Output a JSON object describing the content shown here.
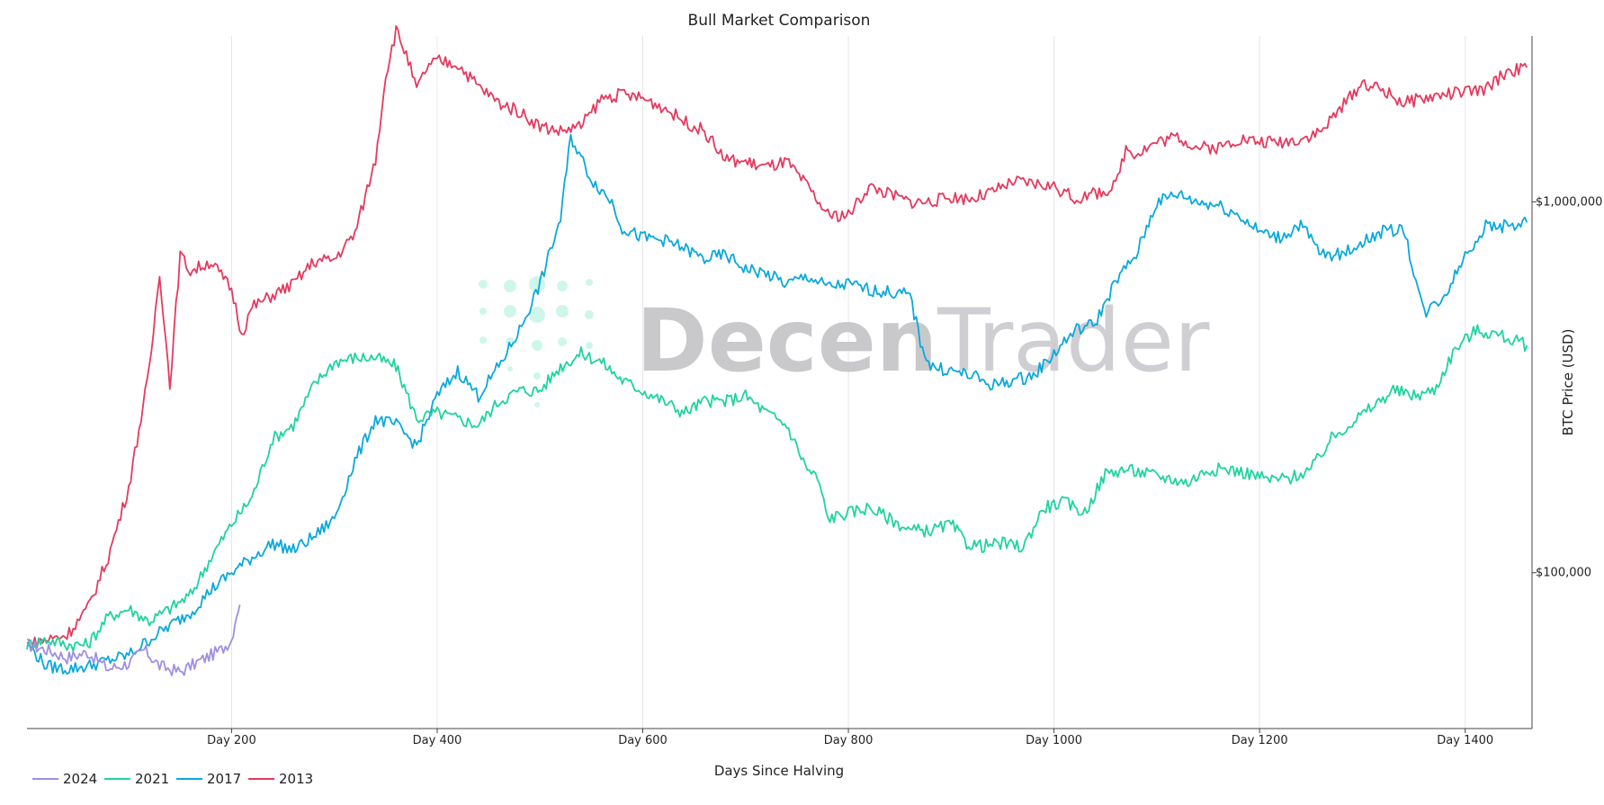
{
  "chart_data": {
    "type": "line",
    "title": "Bull Market Comparison",
    "xlabel": "Days Since Halving",
    "ylabel": "BTC Price (USD)",
    "y_scale": "log",
    "xlim": [
      1,
      1465
    ],
    "ylim": [
      38000,
      2800000
    ],
    "x_ticks": [
      {
        "value": 200,
        "label": "Day 200"
      },
      {
        "value": 400,
        "label": "Day 400"
      },
      {
        "value": 600,
        "label": "Day 600"
      },
      {
        "value": 800,
        "label": "Day 800"
      },
      {
        "value": 1000,
        "label": "Day 1000"
      },
      {
        "value": 1200,
        "label": "Day 1200"
      },
      {
        "value": 1400,
        "label": "Day 1400"
      }
    ],
    "y_ticks": [
      {
        "value": 100000,
        "label": "$100,000"
      },
      {
        "value": 1000000,
        "label": "$1,000,000"
      }
    ],
    "grid": "vertical",
    "legend_position": "bottom-left",
    "series": [
      {
        "name": "2024",
        "color": "#9f8fe3",
        "points": [
          [
            1,
            64000
          ],
          [
            20,
            62000
          ],
          [
            40,
            59000
          ],
          [
            60,
            61000
          ],
          [
            80,
            55000
          ],
          [
            100,
            57000
          ],
          [
            115,
            62000
          ],
          [
            130,
            56000
          ],
          [
            150,
            54000
          ],
          [
            170,
            58000
          ],
          [
            190,
            62000
          ],
          [
            200,
            66000
          ],
          [
            205,
            78000
          ],
          [
            208,
            82000
          ]
        ]
      },
      {
        "name": "2021",
        "color": "#1fd3a0",
        "points": [
          [
            1,
            64000
          ],
          [
            20,
            66000
          ],
          [
            40,
            64000
          ],
          [
            60,
            64000
          ],
          [
            80,
            76000
          ],
          [
            100,
            80000
          ],
          [
            120,
            74000
          ],
          [
            140,
            80000
          ],
          [
            160,
            87000
          ],
          [
            180,
            110000
          ],
          [
            200,
            135000
          ],
          [
            220,
            160000
          ],
          [
            240,
            230000
          ],
          [
            260,
            250000
          ],
          [
            280,
            320000
          ],
          [
            300,
            370000
          ],
          [
            320,
            380000
          ],
          [
            340,
            380000
          ],
          [
            360,
            360000
          ],
          [
            380,
            260000
          ],
          [
            400,
            270000
          ],
          [
            420,
            260000
          ],
          [
            440,
            250000
          ],
          [
            460,
            290000
          ],
          [
            480,
            310000
          ],
          [
            500,
            310000
          ],
          [
            520,
            360000
          ],
          [
            540,
            390000
          ],
          [
            560,
            370000
          ],
          [
            580,
            330000
          ],
          [
            600,
            310000
          ],
          [
            620,
            290000
          ],
          [
            640,
            270000
          ],
          [
            660,
            290000
          ],
          [
            680,
            290000
          ],
          [
            700,
            300000
          ],
          [
            720,
            270000
          ],
          [
            740,
            250000
          ],
          [
            760,
            190000
          ],
          [
            770,
            180000
          ],
          [
            780,
            140000
          ],
          [
            800,
            145000
          ],
          [
            820,
            150000
          ],
          [
            840,
            140000
          ],
          [
            860,
            130000
          ],
          [
            880,
            130000
          ],
          [
            900,
            135000
          ],
          [
            915,
            120000
          ],
          [
            930,
            118000
          ],
          [
            950,
            120000
          ],
          [
            970,
            117000
          ],
          [
            990,
            150000
          ],
          [
            1010,
            155000
          ],
          [
            1030,
            145000
          ],
          [
            1050,
            185000
          ],
          [
            1070,
            190000
          ],
          [
            1090,
            185000
          ],
          [
            1110,
            180000
          ],
          [
            1130,
            175000
          ],
          [
            1150,
            190000
          ],
          [
            1170,
            190000
          ],
          [
            1190,
            185000
          ],
          [
            1210,
            178000
          ],
          [
            1230,
            180000
          ],
          [
            1250,
            190000
          ],
          [
            1270,
            230000
          ],
          [
            1290,
            255000
          ],
          [
            1310,
            280000
          ],
          [
            1330,
            310000
          ],
          [
            1350,
            300000
          ],
          [
            1370,
            310000
          ],
          [
            1390,
            400000
          ],
          [
            1410,
            450000
          ],
          [
            1430,
            440000
          ],
          [
            1450,
            420000
          ],
          [
            1460,
            410000
          ]
        ]
      },
      {
        "name": "2017",
        "color": "#0aa8dc",
        "points": [
          [
            1,
            64000
          ],
          [
            20,
            56000
          ],
          [
            40,
            55000
          ],
          [
            60,
            56000
          ],
          [
            80,
            58000
          ],
          [
            100,
            60000
          ],
          [
            120,
            66000
          ],
          [
            140,
            72000
          ],
          [
            160,
            78000
          ],
          [
            180,
            90000
          ],
          [
            200,
            100000
          ],
          [
            220,
            110000
          ],
          [
            240,
            120000
          ],
          [
            260,
            115000
          ],
          [
            280,
            125000
          ],
          [
            300,
            140000
          ],
          [
            320,
            200000
          ],
          [
            340,
            260000
          ],
          [
            360,
            250000
          ],
          [
            380,
            220000
          ],
          [
            400,
            300000
          ],
          [
            420,
            350000
          ],
          [
            440,
            300000
          ],
          [
            460,
            360000
          ],
          [
            480,
            450000
          ],
          [
            500,
            600000
          ],
          [
            520,
            900000
          ],
          [
            530,
            1500000
          ],
          [
            550,
            1150000
          ],
          [
            570,
            1000000
          ],
          [
            580,
            850000
          ],
          [
            600,
            800000
          ],
          [
            620,
            790000
          ],
          [
            640,
            750000
          ],
          [
            660,
            700000
          ],
          [
            680,
            720000
          ],
          [
            700,
            660000
          ],
          [
            720,
            640000
          ],
          [
            740,
            600000
          ],
          [
            760,
            630000
          ],
          [
            780,
            590000
          ],
          [
            800,
            600000
          ],
          [
            820,
            580000
          ],
          [
            840,
            570000
          ],
          [
            860,
            560000
          ],
          [
            870,
            420000
          ],
          [
            880,
            360000
          ],
          [
            900,
            350000
          ],
          [
            920,
            340000
          ],
          [
            940,
            320000
          ],
          [
            960,
            330000
          ],
          [
            980,
            340000
          ],
          [
            1000,
            390000
          ],
          [
            1020,
            450000
          ],
          [
            1040,
            470000
          ],
          [
            1060,
            610000
          ],
          [
            1080,
            720000
          ],
          [
            1100,
            1000000
          ],
          [
            1120,
            1050000
          ],
          [
            1140,
            1000000
          ],
          [
            1160,
            980000
          ],
          [
            1180,
            920000
          ],
          [
            1200,
            830000
          ],
          [
            1220,
            800000
          ],
          [
            1240,
            870000
          ],
          [
            1260,
            720000
          ],
          [
            1280,
            720000
          ],
          [
            1300,
            780000
          ],
          [
            1320,
            830000
          ],
          [
            1340,
            850000
          ],
          [
            1360,
            500000
          ],
          [
            1380,
            560000
          ],
          [
            1400,
            720000
          ],
          [
            1420,
            860000
          ],
          [
            1440,
            860000
          ],
          [
            1460,
            880000
          ]
        ]
      },
      {
        "name": "2013",
        "color": "#e43a5e",
        "points": [
          [
            1,
            64000
          ],
          [
            20,
            66000
          ],
          [
            40,
            68000
          ],
          [
            60,
            80000
          ],
          [
            80,
            110000
          ],
          [
            100,
            170000
          ],
          [
            120,
            350000
          ],
          [
            130,
            650000
          ],
          [
            140,
            320000
          ],
          [
            150,
            720000
          ],
          [
            160,
            650000
          ],
          [
            180,
            690000
          ],
          [
            200,
            580000
          ],
          [
            210,
            440000
          ],
          [
            220,
            520000
          ],
          [
            240,
            560000
          ],
          [
            260,
            600000
          ],
          [
            280,
            690000
          ],
          [
            300,
            700000
          ],
          [
            320,
            820000
          ],
          [
            340,
            1300000
          ],
          [
            350,
            2200000
          ],
          [
            360,
            2900000
          ],
          [
            370,
            2500000
          ],
          [
            380,
            2000000
          ],
          [
            390,
            2300000
          ],
          [
            400,
            2400000
          ],
          [
            420,
            2350000
          ],
          [
            440,
            2050000
          ],
          [
            460,
            1850000
          ],
          [
            480,
            1750000
          ],
          [
            500,
            1600000
          ],
          [
            520,
            1550000
          ],
          [
            540,
            1600000
          ],
          [
            560,
            1900000
          ],
          [
            580,
            1950000
          ],
          [
            600,
            1900000
          ],
          [
            620,
            1800000
          ],
          [
            640,
            1650000
          ],
          [
            660,
            1550000
          ],
          [
            680,
            1300000
          ],
          [
            700,
            1280000
          ],
          [
            720,
            1240000
          ],
          [
            740,
            1280000
          ],
          [
            760,
            1100000
          ],
          [
            780,
            920000
          ],
          [
            800,
            920000
          ],
          [
            820,
            1100000
          ],
          [
            840,
            1050000
          ],
          [
            860,
            1000000
          ],
          [
            880,
            1000000
          ],
          [
            900,
            1030000
          ],
          [
            920,
            1020000
          ],
          [
            940,
            1060000
          ],
          [
            960,
            1130000
          ],
          [
            980,
            1120000
          ],
          [
            1000,
            1100000
          ],
          [
            1020,
            1020000
          ],
          [
            1040,
            1050000
          ],
          [
            1060,
            1100000
          ],
          [
            1070,
            1400000
          ],
          [
            1080,
            1350000
          ],
          [
            1100,
            1450000
          ],
          [
            1120,
            1500000
          ],
          [
            1140,
            1400000
          ],
          [
            1160,
            1400000
          ],
          [
            1180,
            1480000
          ],
          [
            1200,
            1450000
          ],
          [
            1220,
            1450000
          ],
          [
            1240,
            1480000
          ],
          [
            1260,
            1550000
          ],
          [
            1280,
            1800000
          ],
          [
            1300,
            2100000
          ],
          [
            1320,
            2000000
          ],
          [
            1340,
            1850000
          ],
          [
            1360,
            1900000
          ],
          [
            1380,
            1950000
          ],
          [
            1400,
            1980000
          ],
          [
            1420,
            2000000
          ],
          [
            1440,
            2250000
          ],
          [
            1460,
            2300000
          ]
        ]
      }
    ]
  },
  "watermark": {
    "bold": "Decen",
    "light": "Trader"
  }
}
